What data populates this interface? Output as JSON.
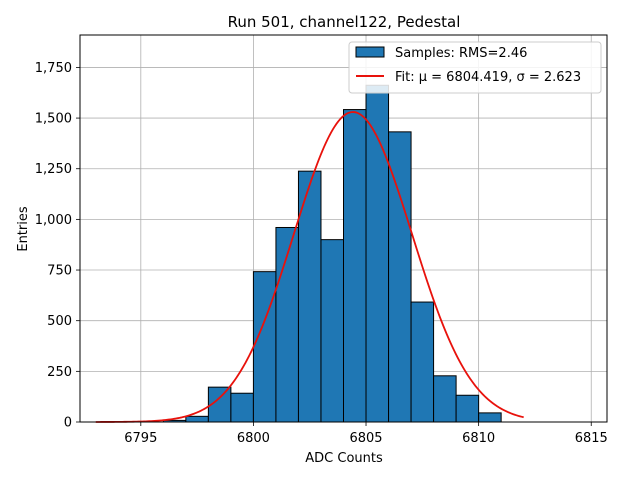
{
  "chart_data": {
    "type": "bar",
    "title": "Run 501, channel122, Pedestal",
    "xlabel": "ADC Counts",
    "ylabel": "Entries",
    "xlim": [
      6792.3,
      6815.7
    ],
    "ylim": [
      0,
      1910
    ],
    "grid": true,
    "xticks": [
      6795,
      6800,
      6805,
      6810,
      6815
    ],
    "yticks": [
      0,
      250,
      500,
      750,
      1000,
      1250,
      1500,
      1750
    ],
    "bin_width": 1,
    "histogram": {
      "name": "Samples: RMS=2.46",
      "bin_edges": [
        6796,
        6797,
        6798,
        6799,
        6800,
        6801,
        6802,
        6803,
        6804,
        6805,
        6806,
        6807,
        6808,
        6809,
        6810,
        6811
      ],
      "values": [
        8,
        28,
        172,
        142,
        742,
        960,
        1238,
        900,
        1542,
        1662,
        1432,
        592,
        228,
        132,
        45
      ]
    },
    "fit": {
      "name": "Fit: μ = 6804.419, σ = 2.623",
      "mu": 6804.419,
      "sigma": 2.623,
      "amplitude": 1530,
      "x_range": [
        6793,
        6812
      ]
    },
    "legend_location": "upper right",
    "colors": {
      "bar_fill": "#1f77b4",
      "bar_edge": "#000000",
      "fit_line": "#e8120c",
      "grid": "#b0b0b0"
    }
  }
}
